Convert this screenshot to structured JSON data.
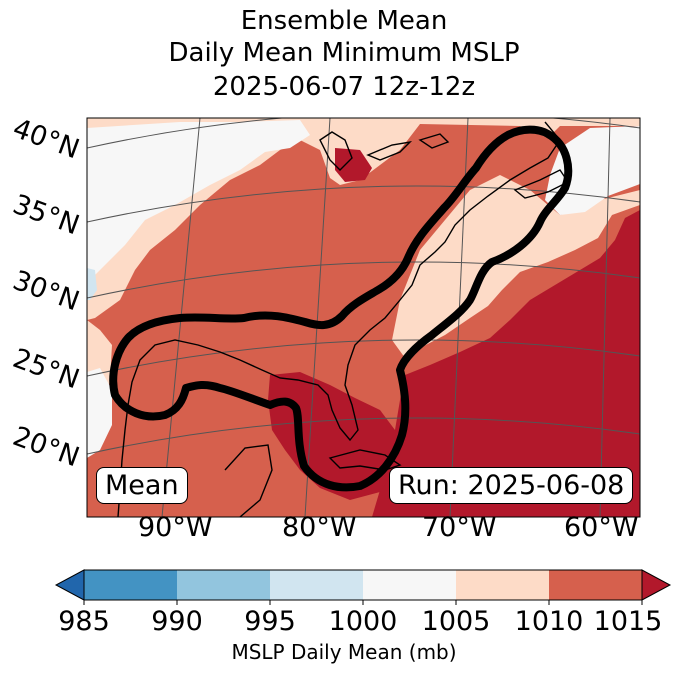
{
  "title": {
    "line1": "Ensemble Mean",
    "line2": "Daily Mean Minimum MSLP",
    "line3": "2025-06-07 12z-12z"
  },
  "lat_labels": [
    "40°N",
    "35°N",
    "30°N",
    "25°N",
    "20°N"
  ],
  "lon_labels": [
    "90°W",
    "80°W",
    "70°W",
    "60°W"
  ],
  "mean_label": "Mean",
  "run_label": "Run: 2025-06-08",
  "colorbar": {
    "ticks": [
      "985",
      "990",
      "995",
      "1000",
      "1005",
      "1010",
      "1015"
    ],
    "label": "MSLP Daily Mean (mb)",
    "bins": [
      {
        "range": "<985",
        "color": "#2166ac"
      },
      {
        "range": "985-990",
        "color": "#4393c3"
      },
      {
        "range": "990-995",
        "color": "#92c5de"
      },
      {
        "range": "995-1000",
        "color": "#d1e5f0"
      },
      {
        "range": "1000-1005",
        "color": "#f7f7f7"
      },
      {
        "range": "1005-1010",
        "color": "#fddbc7"
      },
      {
        "range": "1010-1015",
        "color": "#d6604d"
      },
      {
        "range": ">1015",
        "color": "#b2182b"
      }
    ]
  },
  "colors": {
    "contour": "#000000",
    "coast": "#000000",
    "grid": "#555555"
  }
}
